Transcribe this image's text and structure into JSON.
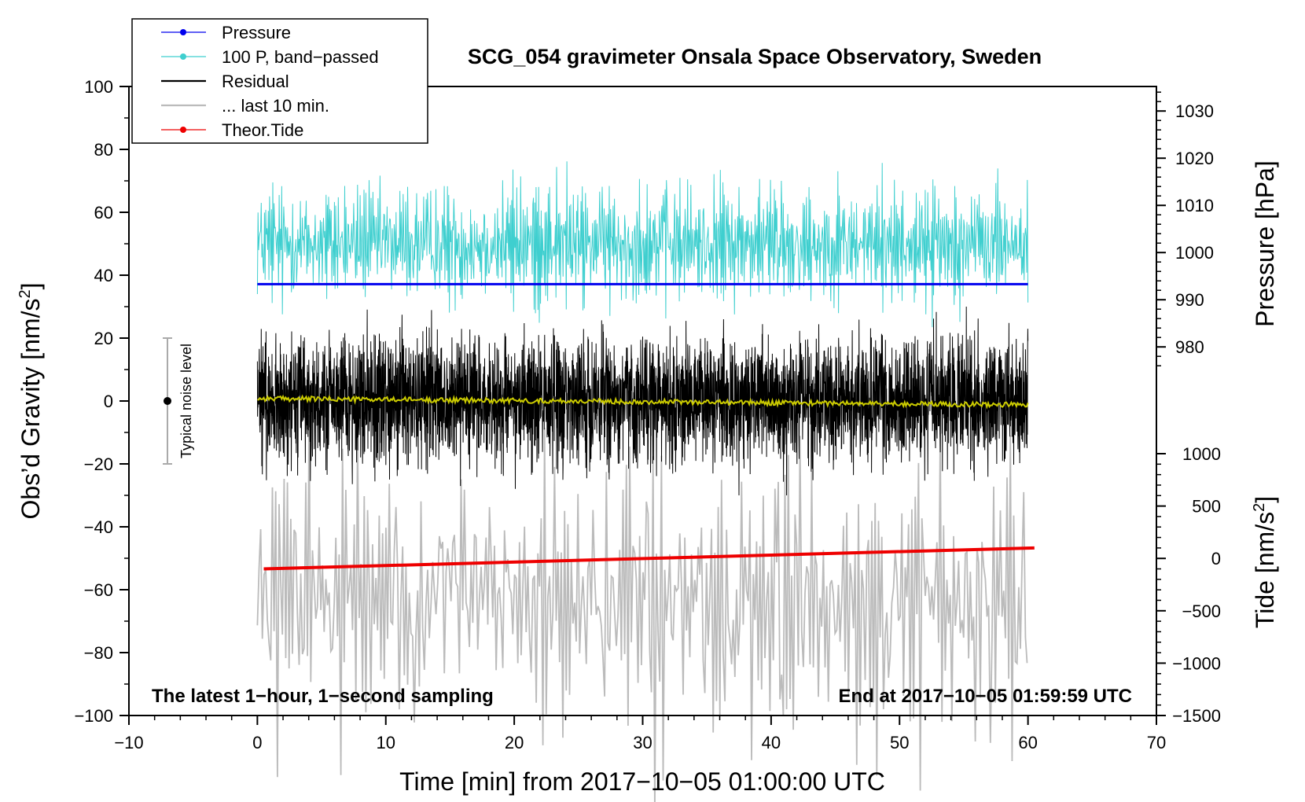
{
  "chart_data": {
    "type": "line",
    "title": "SCG_054 gravimeter Onsala Space Observatory, Sweden",
    "xlabel": "Time [min] from 2017−10−05 01:00:00 UTC",
    "ylabel_left_main": "Obs’d Gravity [nm/s",
    "ylabel_left_sup": "2",
    "ylabel_left_end": "]",
    "ylabel_right_pressure": "Pressure [hPa]",
    "ylabel_right_tide_main": "Tide [nm/s",
    "ylabel_right_tide_sup": "2",
    "ylabel_right_tide_end": "]",
    "xlim": [
      -10,
      70
    ],
    "ylim": [
      -100,
      100
    ],
    "pressure_lim": [
      975.2,
      1035.2
    ],
    "tide_lim": [
      -1500,
      1000
    ],
    "x_ticks": [
      {
        "v": -10,
        "label": "−10"
      },
      {
        "v": 0,
        "label": "0"
      },
      {
        "v": 10,
        "label": "10"
      },
      {
        "v": 20,
        "label": "20"
      },
      {
        "v": 30,
        "label": "30"
      },
      {
        "v": 40,
        "label": "40"
      },
      {
        "v": 50,
        "label": "50"
      },
      {
        "v": 60,
        "label": "60"
      },
      {
        "v": 70,
        "label": "70"
      }
    ],
    "y_ticks_left": [
      {
        "v": 100,
        "label": "100"
      },
      {
        "v": 80,
        "label": "80"
      },
      {
        "v": 60,
        "label": "60"
      },
      {
        "v": 40,
        "label": "40"
      },
      {
        "v": 20,
        "label": "20"
      },
      {
        "v": 0,
        "label": "0"
      },
      {
        "v": -20,
        "label": "−20"
      },
      {
        "v": -40,
        "label": "−40"
      },
      {
        "v": -60,
        "label": "−60"
      },
      {
        "v": -80,
        "label": "−80"
      },
      {
        "v": -100,
        "label": "−100"
      }
    ],
    "y_ticks_pressure": [
      {
        "v": 1030,
        "label": "1030"
      },
      {
        "v": 1020,
        "label": "1020"
      },
      {
        "v": 1010,
        "label": "1010"
      },
      {
        "v": 1000,
        "label": "1000"
      },
      {
        "v": 990,
        "label": "990"
      },
      {
        "v": 980,
        "label": "980"
      }
    ],
    "y_ticks_tide": [
      {
        "v": 1000,
        "label": "1000"
      },
      {
        "v": 500,
        "label": "500"
      },
      {
        "v": 0,
        "label": "0"
      },
      {
        "v": -500,
        "label": "−500"
      },
      {
        "v": -1000,
        "label": "−1000"
      },
      {
        "v": -1500,
        "label": "−1500"
      }
    ],
    "series": [
      {
        "name": "Pressure",
        "color": "#0000ee",
        "axis": "pressure",
        "x": [
          0,
          60
        ],
        "y": [
          993.3,
          993.3
        ]
      },
      {
        "name": "100 P, band−passed",
        "color": "#3fcfcf",
        "axis": "gravity",
        "center": 50,
        "amplitude": 6,
        "x_range": [
          0,
          60
        ],
        "peaks": [
          {
            "x": 9.9,
            "v": 59
          },
          {
            "x": 15.9,
            "v": 60
          },
          {
            "x": 31.9,
            "v": 64
          },
          {
            "x": 40.8,
            "v": 70
          },
          {
            "x": 55.6,
            "v": 65
          }
        ]
      },
      {
        "name": "Residual",
        "color": "#000000",
        "axis": "gravity",
        "center": 0,
        "amplitude": 10,
        "x_range": [
          0,
          60
        ],
        "peaks": [
          {
            "x": 36.3,
            "v": 26
          },
          {
            "x": 55.2,
            "v": 30
          },
          {
            "x": 37.5,
            "v": -30
          },
          {
            "x": 41.2,
            "v": -30
          }
        ]
      },
      {
        "name": "... last 10 min.",
        "color": "#bbbbbb",
        "axis": "gravity",
        "center": -63,
        "amplitude": 12,
        "x_range": [
          0,
          60
        ],
        "peaks": [
          {
            "x": 30.3,
            "v": -32
          },
          {
            "x": 29.9,
            "v": -84
          },
          {
            "x": 40.8,
            "v": -87
          },
          {
            "x": 49.1,
            "v": -88
          }
        ]
      },
      {
        "name": "Theor.Tide",
        "color": "#ee0000",
        "axis": "tide",
        "x": [
          0.5,
          60.5
        ],
        "y": [
          -100,
          100
        ]
      },
      {
        "name": "Residual smoothed",
        "color": "#cccc00",
        "axis": "gravity",
        "x": [
          0,
          60
        ],
        "y": [
          0.8,
          -1.2
        ]
      }
    ],
    "legend": [
      {
        "label": "Pressure",
        "color": "#0000ee",
        "dot": true
      },
      {
        "label": "100 P, band−passed",
        "color": "#3fcfcf",
        "dot": true
      },
      {
        "label": "Residual",
        "color": "#000000",
        "dot": false
      },
      {
        "label": "... last 10 min.",
        "color": "#bbbbbb",
        "dot": false
      },
      {
        "label": "Theor.Tide",
        "color": "#ee0000",
        "dot": true
      }
    ],
    "legend_position": "top-left",
    "noise_bar": {
      "x": -7,
      "y_low": -20,
      "y_high": 20,
      "center": 0,
      "label": "Typical noise level"
    },
    "annotation_left": "The latest 1−hour, 1−second sampling",
    "annotation_right": "End at 2017−10−05 01:59:59 UTC"
  }
}
